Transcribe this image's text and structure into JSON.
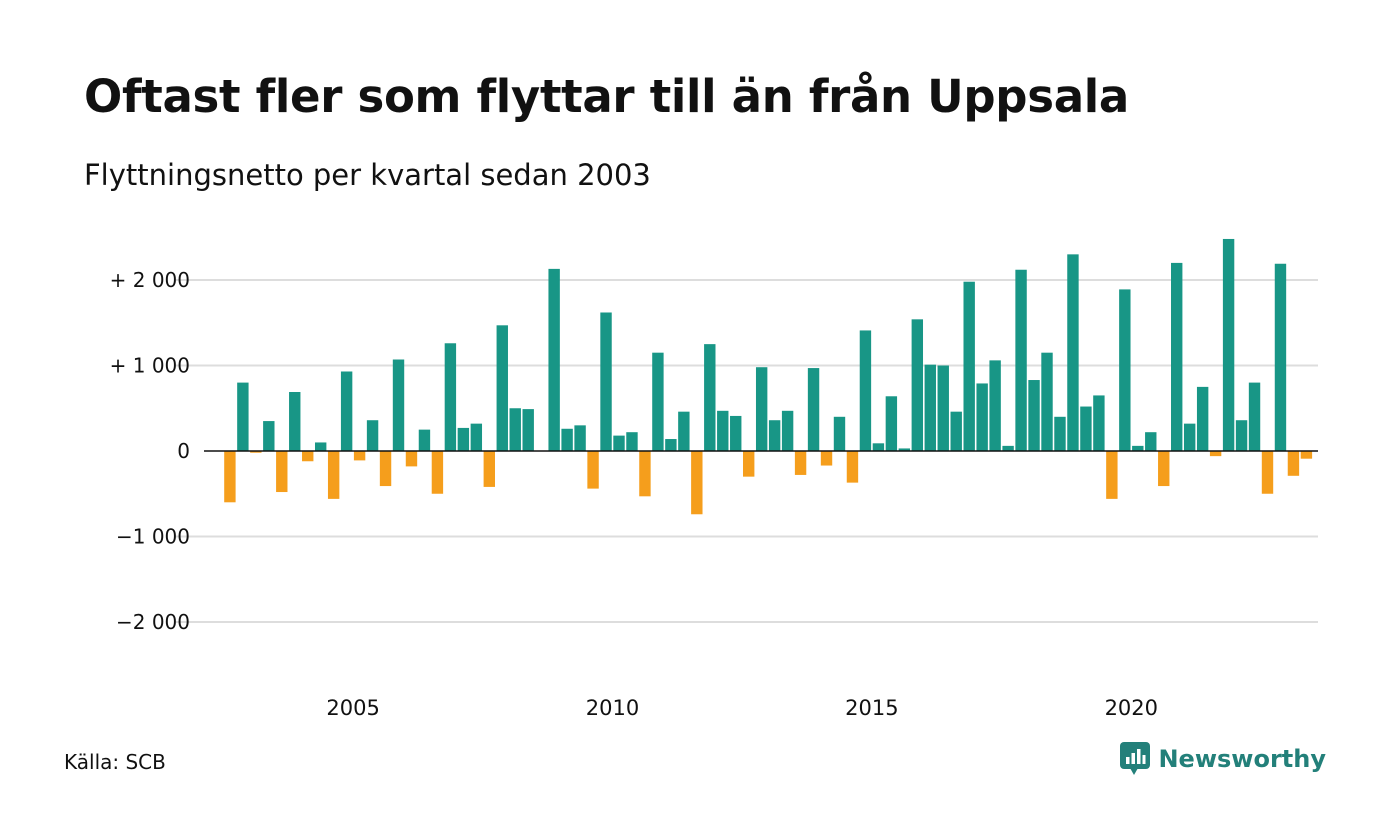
{
  "header": {
    "title": "Oftast fler som flyttar till än från Uppsala",
    "subtitle": "Flyttningsnetto per kvartal sedan 2003"
  },
  "footer": {
    "source": "Källa: SCB",
    "brand": "Newsworthy"
  },
  "colors": {
    "positive": "#189686",
    "negative": "#f59e1c",
    "grid": "#dddddd",
    "zero_line": "#111111",
    "brand": "#23807a"
  },
  "chart_data": {
    "type": "bar",
    "title": "Oftast fler som flyttar till än från Uppsala",
    "subtitle": "Flyttningsnetto per kvartal sedan 2003",
    "x_start": "2003 Q1",
    "x_ticks": [
      {
        "year": 2005,
        "label": "2005"
      },
      {
        "year": 2010,
        "label": "2010"
      },
      {
        "year": 2015,
        "label": "2015"
      },
      {
        "year": 2020,
        "label": "2020"
      }
    ],
    "y_ticks": [
      {
        "value": 2000,
        "label": "+ 2 000"
      },
      {
        "value": 1000,
        "label": "+ 1 000"
      },
      {
        "value": 0,
        "label": "0"
      },
      {
        "value": -1000,
        "label": "−1 000"
      },
      {
        "value": -2000,
        "label": "−2 000"
      }
    ],
    "ylim": [
      -2300,
      2550
    ],
    "xlabel": "",
    "ylabel": "",
    "grid": true,
    "values": [
      -600,
      800,
      -20,
      350,
      -480,
      690,
      -120,
      100,
      -560,
      930,
      -110,
      360,
      -410,
      1070,
      -180,
      250,
      -500,
      1260,
      270,
      320,
      -420,
      1470,
      500,
      490,
      0,
      2130,
      260,
      300,
      -440,
      1620,
      180,
      220,
      -530,
      1150,
      140,
      460,
      -740,
      1250,
      470,
      410,
      -300,
      980,
      360,
      470,
      -280,
      970,
      -170,
      400,
      -370,
      1410,
      90,
      640,
      30,
      1540,
      1010,
      1000,
      460,
      1980,
      790,
      1060,
      60,
      2120,
      830,
      1150,
      400,
      2300,
      520,
      650,
      -560,
      1890,
      60,
      220,
      -410,
      2200,
      320,
      750,
      -60,
      2480,
      360,
      800,
      -500,
      2190,
      -290,
      -90
    ]
  }
}
